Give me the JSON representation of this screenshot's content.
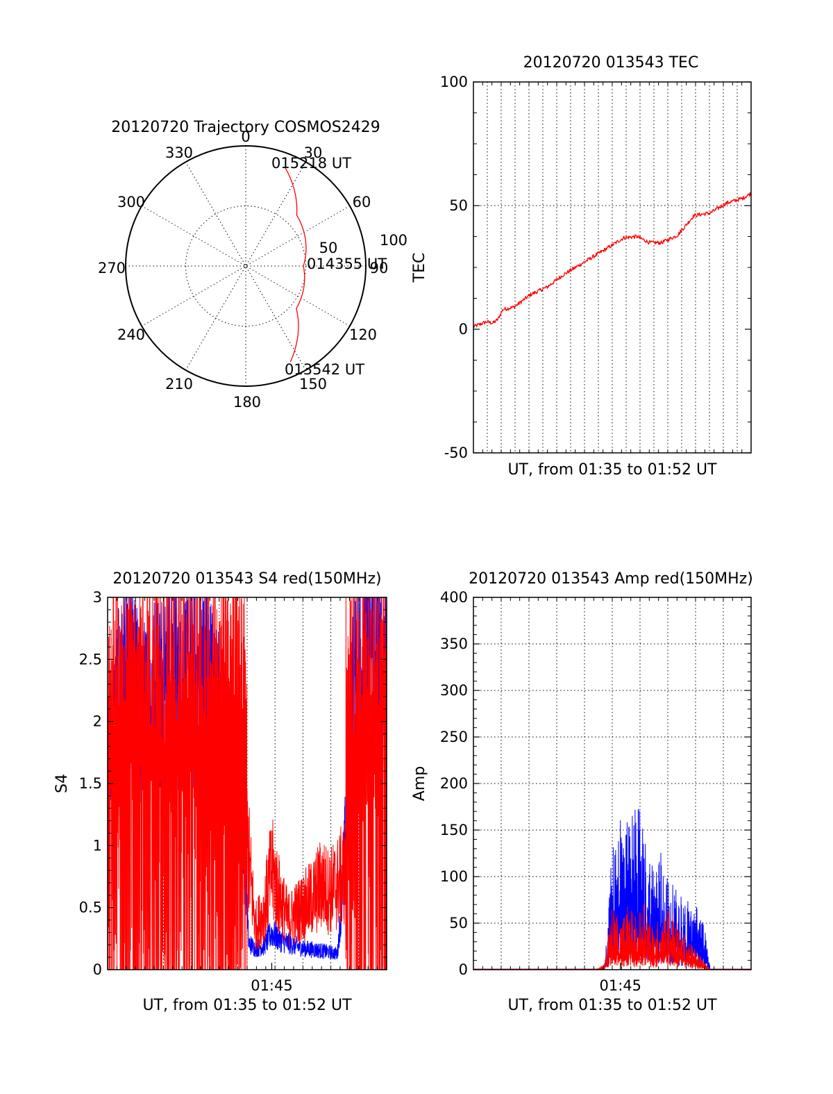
{
  "colors": {
    "red": "#ff0000",
    "blue": "#0000ff",
    "axis": "#000000"
  },
  "chart_data": [
    {
      "type": "polar",
      "title": "20120720 Trajectory COSMOS2429",
      "azimuth_labels": [
        "0",
        "30",
        "60",
        "90",
        "120",
        "150",
        "180",
        "210",
        "240",
        "270",
        "300",
        "330"
      ],
      "radial_ticks": [
        "50",
        "100"
      ],
      "grid": true,
      "series": [
        {
          "color": "red",
          "points": [
            [
              155,
              88
            ],
            [
              130,
              55
            ],
            [
              90,
              48
            ],
            [
              45,
              60
            ],
            [
              22,
              88
            ]
          ]
        }
      ],
      "annotations": [
        "015218 UT",
        "014355 UT",
        "013542 UT"
      ]
    },
    {
      "type": "line",
      "title": "20120720 013543 TEC",
      "xlabel": "UT, from 01:35 to 01:52 UT",
      "ylabel": "TEC",
      "ylim": [
        -50,
        100
      ],
      "yticks": [
        "-50",
        "0",
        "50",
        "100"
      ],
      "xlim": [
        0,
        17
      ],
      "grid": true,
      "series": [
        {
          "color": "red",
          "x": [
            0.0,
            0.8,
            1.2,
            1.5,
            1.8,
            2.5,
            3.5,
            4.5,
            5.5,
            6.5,
            7.5,
            8.5,
            9.2,
            10.0,
            10.8,
            11.5,
            12.5,
            13.5,
            14.5,
            15.5,
            16.5,
            17.0
          ],
          "y": [
            1,
            3,
            2.5,
            4,
            8,
            9,
            14,
            17,
            22,
            26,
            30,
            34,
            37,
            37.5,
            35,
            35,
            38,
            46,
            47,
            51,
            53,
            55
          ]
        }
      ]
    },
    {
      "type": "line",
      "title": "20120720 013543 S4 red(150MHz)",
      "xlabel": "UT, from 01:35 to 01:52 UT",
      "ylabel": "S4",
      "ylim": [
        0,
        3
      ],
      "yticks": [
        "0",
        "0.5",
        "1",
        "1.5",
        "2",
        "2.5",
        "3"
      ],
      "xlim": [
        0,
        17
      ],
      "xticks": [
        {
          "x": 10,
          "label": "01:45"
        }
      ],
      "grid": true,
      "series": [
        {
          "color": "blue",
          "x": [
            0.0,
            0.5,
            1.0,
            1.5,
            2.0,
            3.0,
            4.0,
            5.0,
            6.0,
            6.8,
            7.5,
            8.0,
            8.3,
            8.6,
            9.0,
            9.5,
            10.0,
            10.5,
            11.0,
            12.0,
            13.0,
            14.0,
            14.3,
            14.6,
            15.0,
            15.5,
            16.0,
            16.5,
            17.0
          ],
          "y": [
            1.5,
            2.3,
            2.4,
            2.7,
            2.2,
            2.5,
            2.6,
            2.5,
            2.6,
            2.2,
            1.8,
            1.5,
            1.2,
            0.25,
            0.2,
            0.22,
            0.35,
            0.28,
            0.25,
            0.2,
            0.18,
            0.15,
            0.7,
            1.6,
            2.5,
            2.7,
            2.8,
            2.6,
            2.7
          ]
        },
        {
          "color": "red",
          "x": [
            0.0,
            1.0,
            2.0,
            3.0,
            4.0,
            5.0,
            6.0,
            6.8,
            7.5,
            8.0,
            8.5,
            9.0,
            9.5,
            10.0,
            10.5,
            11.0,
            11.5,
            12.0,
            12.5,
            13.0,
            13.5,
            14.0,
            14.5,
            15.0,
            15.5,
            16.0,
            16.5,
            17.0
          ],
          "y": [
            1.5,
            2.0,
            2.3,
            2.0,
            1.8,
            2.0,
            1.7,
            1.8,
            1.5,
            1.1,
            0.9,
            0.3,
            0.4,
            0.7,
            0.5,
            0.35,
            0.4,
            0.45,
            0.5,
            0.6,
            0.55,
            0.6,
            0.7,
            1.7,
            2.2,
            2.4,
            2.0,
            2.1
          ]
        }
      ]
    },
    {
      "type": "line",
      "title": "20120720 013543 Amp red(150MHz)",
      "xlabel": "UT, from 01:35 to 01:52 UT",
      "ylabel": "Amp",
      "ylim": [
        0,
        400
      ],
      "yticks": [
        "0",
        "50",
        "100",
        "150",
        "200",
        "250",
        "300",
        "350",
        "400"
      ],
      "xlim": [
        0,
        17
      ],
      "xticks": [
        {
          "x": 9,
          "label": "01:45"
        }
      ],
      "grid": true,
      "series": [
        {
          "color": "blue",
          "x": [
            0.0,
            7.5,
            8.0,
            8.5,
            9.0,
            9.5,
            10.0,
            10.5,
            11.0,
            11.5,
            12.0,
            12.5,
            13.0,
            13.5,
            14.0,
            14.5,
            17.0
          ],
          "y": [
            0,
            0,
            0,
            110,
            150,
            130,
            160,
            120,
            100,
            110,
            80,
            70,
            65,
            60,
            55,
            0,
            0
          ]
        },
        {
          "color": "red",
          "x": [
            0.0,
            7.5,
            8.0,
            8.5,
            9.0,
            9.5,
            10.0,
            10.5,
            11.0,
            11.5,
            12.0,
            12.5,
            13.0,
            13.5,
            14.0,
            14.5,
            17.0
          ],
          "y": [
            0,
            0,
            5,
            60,
            40,
            60,
            45,
            70,
            35,
            50,
            60,
            40,
            30,
            20,
            10,
            0,
            0
          ]
        }
      ]
    }
  ]
}
